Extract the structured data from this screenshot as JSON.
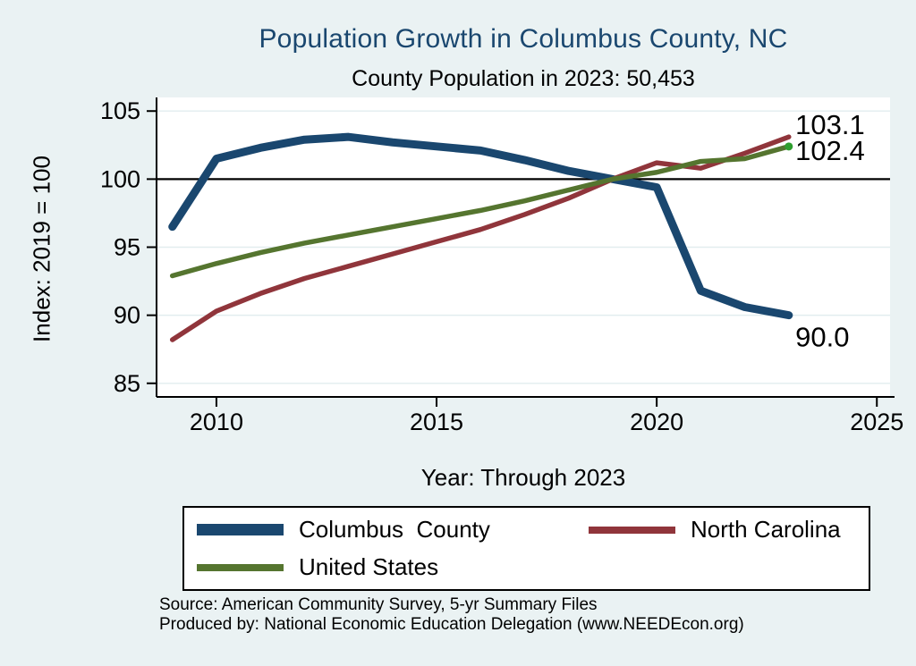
{
  "chart_data": {
    "type": "line",
    "title": "Population Growth in Columbus County, NC",
    "subtitle": "County Population in 2023: 50,453",
    "xlabel": "Year: Through 2023",
    "ylabel": "Index: 2019 = 100",
    "x": [
      2009,
      2010,
      2011,
      2012,
      2013,
      2014,
      2015,
      2016,
      2017,
      2018,
      2019,
      2020,
      2021,
      2022,
      2023
    ],
    "x_ticks": [
      2010,
      2015,
      2020,
      2025
    ],
    "y_ticks": [
      85,
      90,
      95,
      100,
      105
    ],
    "xlim": [
      2008.64,
      2025.3
    ],
    "ylim": [
      84,
      106
    ],
    "grid": "horizontal",
    "grid_color": "#e2edef",
    "reference_line_y": 100,
    "series": [
      {
        "name": "Columbus  County",
        "color": "#1a476f",
        "width": 9,
        "values": [
          96.5,
          101.5,
          102.3,
          102.9,
          103.1,
          102.7,
          102.4,
          102.1,
          101.4,
          100.6,
          100.0,
          99.4,
          91.8,
          90.6,
          90.0
        ]
      },
      {
        "name": "North Carolina",
        "color": "#90353b",
        "width": 5.5,
        "values": [
          88.2,
          90.3,
          91.6,
          92.7,
          93.6,
          94.5,
          95.4,
          96.3,
          97.4,
          98.6,
          100.0,
          101.2,
          100.8,
          101.9,
          103.1
        ]
      },
      {
        "name": "United States",
        "color": "#55752f",
        "width": 5.5,
        "end_marker_color": "#2e9e2e",
        "values": [
          92.9,
          93.8,
          94.6,
          95.3,
          95.9,
          96.5,
          97.1,
          97.7,
          98.4,
          99.2,
          100.0,
          100.5,
          101.3,
          101.5,
          102.4
        ]
      }
    ],
    "annotations": [
      {
        "text": "103.1",
        "year": 2023.15,
        "value": 104.0
      },
      {
        "text": "102.4",
        "year": 2023.15,
        "value": 102.1
      },
      {
        "text": "90.0",
        "year": 2023.15,
        "value": 88.4
      }
    ],
    "legend": {
      "position": "bottom",
      "entries": [
        "Columbus  County",
        "North Carolina",
        "United States"
      ]
    }
  },
  "colors": {
    "page_background": "#eaf2f3",
    "plot_background": "#ffffff",
    "title": "#1a476f",
    "axis": "#000000"
  },
  "source": {
    "line1": "Source: American Community Survey, 5-yr Summary Files",
    "line2": "Produced by: National Economic Education Delegation (www.NEEDEcon.org)"
  }
}
